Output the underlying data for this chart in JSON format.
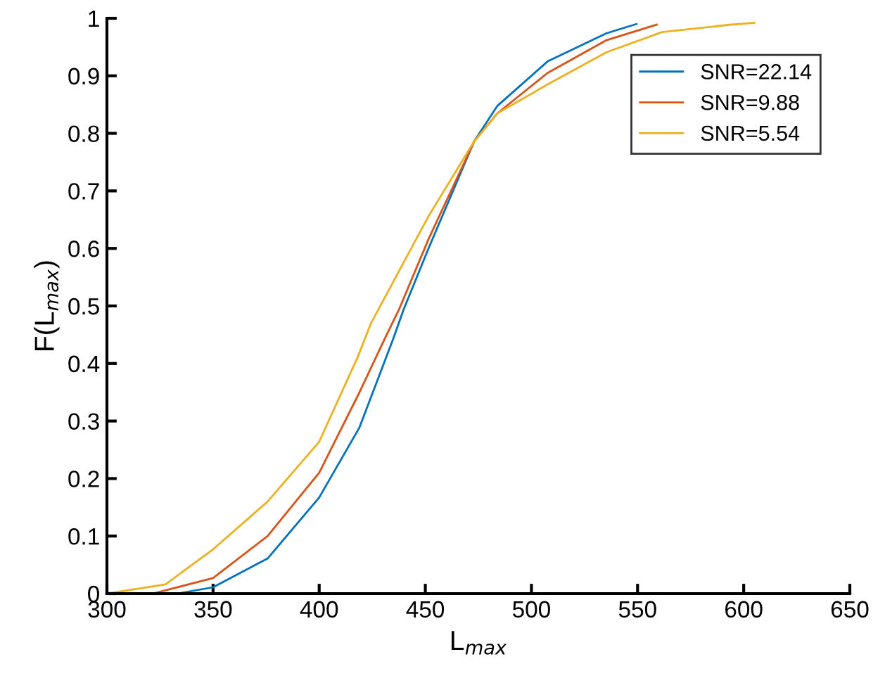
{
  "chart_data": {
    "type": "line",
    "xlabel": "L$_{max}$",
    "ylabel": "F(L$_{max}$)",
    "xlim": [
      300,
      650
    ],
    "xticks": [
      300,
      350,
      400,
      450,
      500,
      550,
      600,
      650
    ],
    "ylim": [
      0,
      1
    ],
    "yticks": [
      0,
      0.1,
      0.2,
      0.3,
      0.4,
      0.5,
      0.6,
      0.7,
      0.8,
      0.9,
      1
    ],
    "grid": false,
    "legend": "top right",
    "marker": "none",
    "line_style": "solid",
    "series": [
      {
        "name": "SNR=22.14",
        "color": "#0072bd",
        "x": [
          333,
          350,
          375.7,
          400,
          419,
          435,
          439.7,
          451.5,
          473,
          484,
          507.6,
          535.4,
          549.5
        ],
        "values": [
          0,
          0.011,
          0.061,
          0.167,
          0.289,
          0.444,
          0.493,
          0.6,
          0.786,
          0.848,
          0.925,
          0.974,
          0.99
        ]
      },
      {
        "name": "SNR=9.88",
        "color": "#d95319",
        "x": [
          321.5,
          350,
          375.7,
          400,
          419,
          431,
          437.5,
          451.5,
          473,
          484,
          507.6,
          535.4,
          559
        ],
        "values": [
          0,
          0.027,
          0.1,
          0.21,
          0.35,
          0.444,
          0.493,
          0.616,
          0.786,
          0.835,
          0.905,
          0.962,
          0.989
        ]
      },
      {
        "name": "SNR=5.54",
        "color": "#edb120",
        "x": [
          300,
          327.6,
          350,
          375.7,
          400,
          418,
          424.4,
          451.5,
          473,
          484,
          507.6,
          535.4,
          561.5,
          594,
          605
        ],
        "values": [
          0,
          0.016,
          0.077,
          0.16,
          0.264,
          0.41,
          0.47,
          0.656,
          0.786,
          0.835,
          0.885,
          0.941,
          0.976,
          0.989,
          0.992
        ]
      }
    ]
  }
}
